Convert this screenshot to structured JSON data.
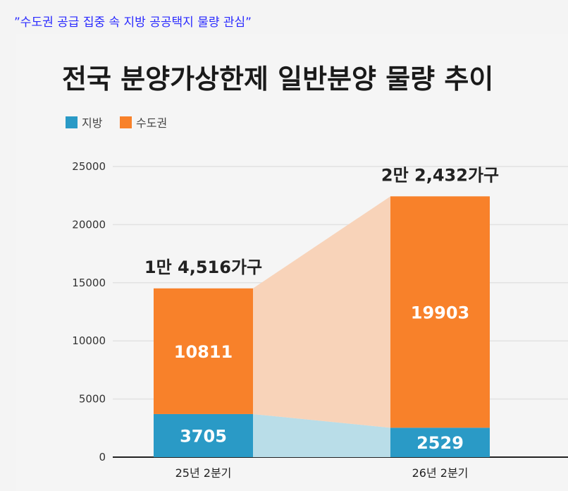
{
  "caption": "”수도권 공급 집중 속 지방 공공택지 물량 관심”",
  "chart_data": {
    "type": "bar",
    "stacked": true,
    "title": "전국 분양가상한제 일반분양 물량 추이",
    "categories": [
      "25년 2분기",
      "26년 2분기"
    ],
    "series": [
      {
        "name": "지방",
        "values": [
          3705,
          2529
        ],
        "color": "#2a9ac6",
        "labels": [
          "3705",
          "2529"
        ]
      },
      {
        "name": "수도권",
        "values": [
          10811,
          19903
        ],
        "color": "#f8812a",
        "labels": [
          "10811",
          "19903"
        ]
      }
    ],
    "totals": [
      "1만 4,516가구",
      "2만 2,432가구"
    ],
    "yticks": [
      "0",
      "5000",
      "10000",
      "15000",
      "20000",
      "25000"
    ],
    "ylim": [
      0,
      25000
    ],
    "grid": true,
    "legend": "top-left",
    "connector_colors": [
      "#b9dde8",
      "#f8d3b9"
    ]
  }
}
